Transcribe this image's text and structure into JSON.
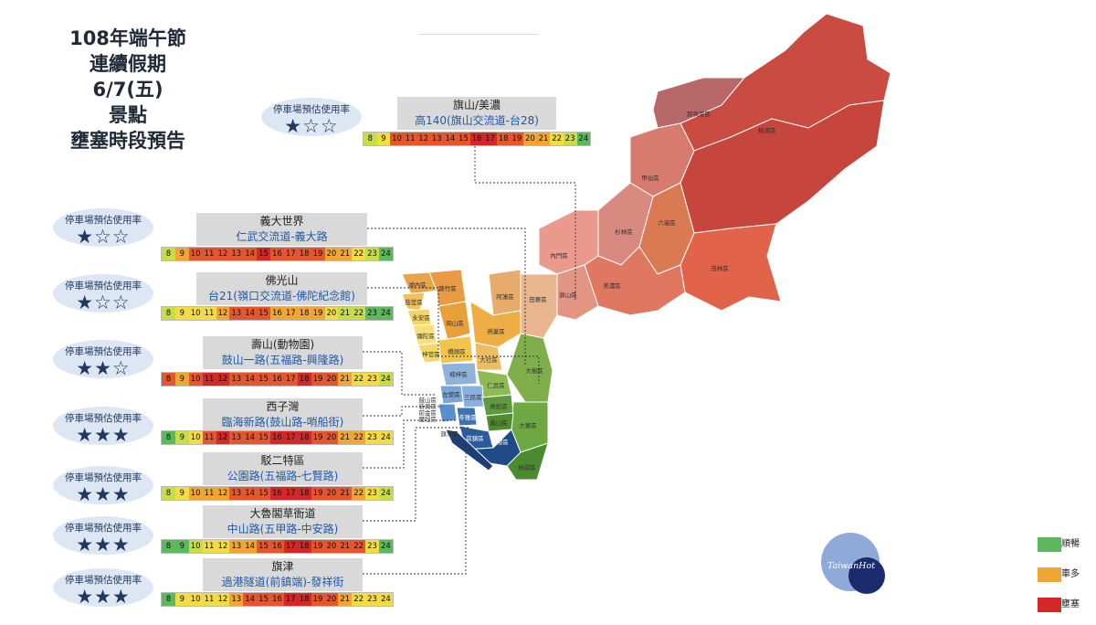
{
  "title": {
    "line1": "108年端午節",
    "line2": "連續假期",
    "line3": "6/7(五)",
    "line4": "景點",
    "line5": "壅塞時段預告"
  },
  "parking_label": "停車場預估使用率",
  "hours": [
    "8",
    "9",
    "10",
    "11",
    "12",
    "13",
    "14",
    "15",
    "16",
    "17",
    "18",
    "19",
    "20",
    "21",
    "22",
    "23",
    "24"
  ],
  "colors": {
    "smooth": "#5cb85c",
    "light": "#c8dc4a",
    "moderate": "#f2dc46",
    "slow": "#f0a534",
    "busy": "#e4572e",
    "congested": "#d22828",
    "bubble": "#dde7f3",
    "star": "#1f3864"
  },
  "routes": [
    {
      "name": "旗山/美濃",
      "road": "高140(旗山交流道-台28)",
      "stars": "★☆☆",
      "levels": [
        1,
        2,
        4,
        4,
        4,
        4,
        4,
        4,
        5,
        5,
        4,
        4,
        3,
        3,
        2,
        1,
        0
      ]
    },
    {
      "name": "義大世界",
      "road": "仁武交流道-義大路",
      "stars": "★☆☆",
      "levels": [
        1,
        3,
        4,
        4,
        4,
        4,
        4,
        5,
        4,
        4,
        4,
        4,
        3,
        3,
        2,
        1,
        0
      ]
    },
    {
      "name": "佛光山",
      "road": "台21(嶺口交流道-佛陀紀念館)",
      "stars": "★☆☆",
      "levels": [
        1,
        2,
        2,
        2,
        3,
        4,
        4,
        4,
        3,
        3,
        3,
        3,
        2,
        1,
        1,
        0,
        0
      ]
    },
    {
      "name": "壽山(動物園)",
      "road": "鼓山一路(五福路-興隆路)",
      "stars": "★★☆",
      "levels": [
        4,
        3,
        4,
        5,
        5,
        4,
        4,
        4,
        4,
        4,
        5,
        4,
        4,
        3,
        2,
        2,
        1
      ]
    },
    {
      "name": "西子灣",
      "road": "臨海新路(鼓山路-哨船街)",
      "stars": "★★★",
      "levels": [
        0,
        1,
        2,
        4,
        5,
        4,
        4,
        4,
        5,
        5,
        5,
        4,
        4,
        3,
        3,
        2,
        2
      ]
    },
    {
      "name": "駁二特區",
      "road": "公園路(五福路-七賢路)",
      "stars": "★★★",
      "levels": [
        1,
        2,
        3,
        3,
        3,
        4,
        4,
        4,
        5,
        5,
        5,
        4,
        4,
        4,
        3,
        2,
        1
      ]
    },
    {
      "name": "大魯閣草衙道",
      "road": "中山路(五甲路-中安路)",
      "stars": "★★★",
      "levels": [
        0,
        0,
        1,
        2,
        2,
        3,
        3,
        4,
        4,
        5,
        5,
        4,
        4,
        4,
        4,
        2,
        0
      ]
    },
    {
      "name": "旗津",
      "road": "過港隧道(前鎮端)-發祥街",
      "stars": "★★★",
      "levels": [
        0,
        2,
        2,
        2,
        2,
        3,
        4,
        4,
        4,
        5,
        5,
        4,
        4,
        3,
        2,
        2,
        2
      ]
    }
  ],
  "districts": {
    "taoyuan": "桃源區",
    "namaxia": "那瑪夏區",
    "maolin": "茂林區",
    "liugui": "六龜區",
    "shanlin": "杉林區",
    "jiaxian": "甲仙區",
    "meinong": "美濃區",
    "qishan": "旗山區",
    "neimen": "內門區",
    "tianliao": "田寮區",
    "alian": "阿蓮區",
    "hunei": "湖內區",
    "qieding": "茄萣區",
    "luzhu": "路竹區",
    "yongan": "永安區",
    "gangshan": "岡山區",
    "mituo": "彌陀區",
    "ziguan": "梓官區",
    "yanchao": "燕巢區",
    "qiaotou": "橋頭區",
    "dashe": "大社區",
    "nanzi": "楠梓區",
    "renwu": "仁武區",
    "dashu": "大樹區",
    "zuoying": "左營區",
    "gushan": "鼓山區",
    "sanmin": "三民區",
    "niaosong": "鳥松區",
    "daliao": "大寮區",
    "linyuan": "林園區",
    "xiaogang": "小港區",
    "qianzhen": "前鎮區",
    "lingya": "苓雅區",
    "xinxing": "新興區",
    "qianjin": "前金區",
    "yancheng": "鹽埕區",
    "qijin": "旗津區",
    "fengshan": "鳳山區"
  },
  "logo": {
    "text": "TaiwanHot"
  },
  "legend": [
    {
      "label": "順暢",
      "color": "#5cb85c"
    },
    {
      "label": "車多",
      "color": "#f0a534"
    },
    {
      "label": "壅塞",
      "color": "#d22828"
    }
  ]
}
